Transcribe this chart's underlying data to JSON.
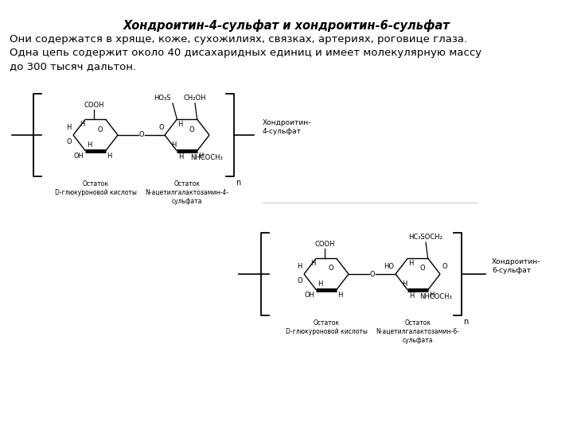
{
  "title": "Хондроитин-4-сульфат и хондроитин-6-сульфат",
  "line1": "Они содержатся в хряще, коже, сухожилиях, связках, артериях, роговице глаза.",
  "line2": "Одна цепь содержит около 40 дисахаридных единиц и имеет молекулярную массу",
  "line3": "до 300 тысяч дальтон.",
  "bg_color": "#ffffff",
  "text_color": "#000000",
  "title_fontsize": 10.5,
  "body_fontsize": 9.5,
  "small_fontsize": 6.5,
  "tiny_fontsize": 6.0,
  "lbl1": "Остаток\nD-глюкуроновой кислоты",
  "lbl2": "Остаток\nN-ацетилгалактозамин-4-\nсульфата",
  "lbl3": "Хондроитин-\n4-сульфат",
  "lbl4": "Остаток\nD-глюкуроновой кислоты",
  "lbl5": "Остаток\nN-ацетилгалактозамин-6-\nсульфата",
  "lbl6": "Хондроитин-\n6-сульфат"
}
